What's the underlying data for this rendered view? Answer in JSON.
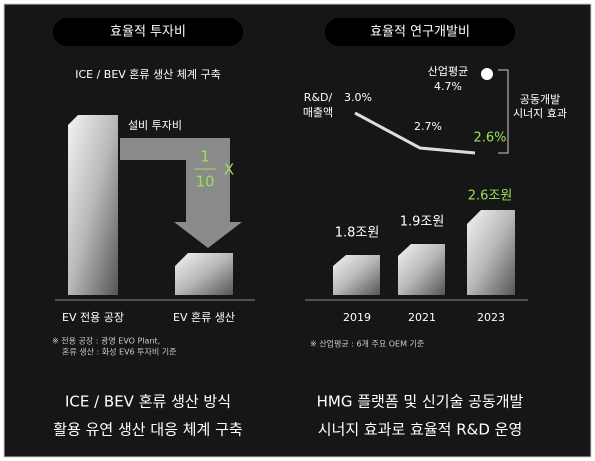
{
  "left": {
    "title": "효율적 투자비",
    "subtitle": "ICE / BEV 혼류 생산 체계 구축",
    "arrow_label": "설비 투자비",
    "fraction_numerator": "1",
    "fraction_denominator": "10",
    "fraction_x": "X",
    "bar_labels": [
      "EV 전용 공장",
      "EV 혼류 생산"
    ],
    "notes": [
      "※ 전용 공장 : 광명 EVO Plant,",
      "혼류 생산 : 화성 EV6 투자비 기준"
    ],
    "caption": [
      "ICE / BEV 혼류 생산 방식",
      "활용 유연 생산 대응 체계 구축"
    ]
  },
  "right": {
    "title": "효율적 연구개발비",
    "industry_label": "산업평균",
    "industry_value": "4.7%",
    "ratio_axis_label": [
      "R&D/",
      "매출액"
    ],
    "ratios": [
      "3.0%",
      "2.7%",
      "2.6%"
    ],
    "synergy": [
      "공동개발",
      "시너지 효과"
    ],
    "amounts": [
      "1.8조원",
      "1.9조원",
      "2.6조원"
    ],
    "years": [
      "2019",
      "2021",
      "2023"
    ],
    "note": "※ 산업평균 : 6개 주요 OEM 기준",
    "caption": [
      "HMG 플랫폼 및 신기술 공동개발",
      "시너지 효과로 효율적 R&D 운영"
    ]
  }
}
